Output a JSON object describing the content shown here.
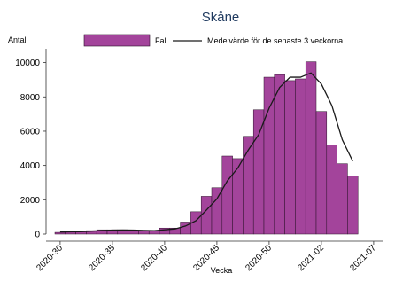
{
  "colors": {
    "bar_fill": "#A3449B",
    "bar_stroke": "#2B1029",
    "line": "#1A1A1A",
    "title": "#1F3A5F",
    "axis": "#333333"
  },
  "chart_data": {
    "type": "bar",
    "title": "Skåne",
    "ylabel": "Antal",
    "xlabel": "Vecka",
    "ylim": [
      0,
      10600
    ],
    "yticks": [
      0,
      2000,
      4000,
      6000,
      8000,
      10000
    ],
    "xtick_labels": [
      "2020-30",
      "2020-35",
      "2020-40",
      "2020-45",
      "2020-50",
      "2021-02",
      "2021-07"
    ],
    "legend_position": "top",
    "grid": false,
    "categories": [
      "2020-30",
      "2020-31",
      "2020-32",
      "2020-33",
      "2020-34",
      "2020-35",
      "2020-36",
      "2020-37",
      "2020-38",
      "2020-39",
      "2020-40",
      "2020-41",
      "2020-42",
      "2020-43",
      "2020-44",
      "2020-45",
      "2020-46",
      "2020-47",
      "2020-48",
      "2020-49",
      "2020-50",
      "2020-51",
      "2020-52",
      "2020-53",
      "2021-01",
      "2021-02",
      "2021-03",
      "2021-04",
      "2021-05"
    ],
    "series": [
      {
        "name": "Fall",
        "type": "bar",
        "values": [
          100,
          150,
          150,
          200,
          250,
          250,
          250,
          200,
          200,
          200,
          350,
          350,
          700,
          1300,
          2200,
          2700,
          4550,
          4400,
          5700,
          7250,
          9150,
          9300,
          8950,
          9050,
          10050,
          7150,
          5200,
          4100,
          3400
        ]
      },
      {
        "name": "Medelvärde för de senaste 3 veckorna",
        "type": "line",
        "values": [
          120,
          130,
          140,
          170,
          200,
          230,
          240,
          230,
          210,
          200,
          250,
          300,
          470,
          780,
          1400,
          2050,
          3100,
          3850,
          4900,
          5800,
          7350,
          8550,
          9150,
          9150,
          9400,
          8750,
          7500,
          5500,
          4250
        ]
      }
    ]
  }
}
